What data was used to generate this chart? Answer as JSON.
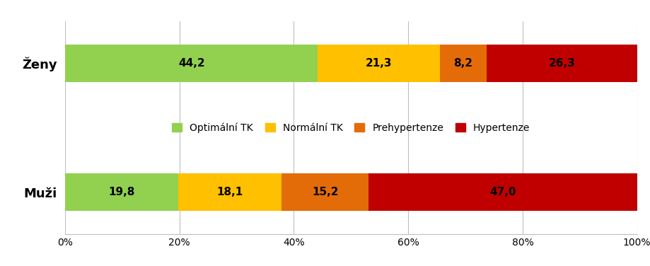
{
  "categories": [
    "Ženy",
    "Muži"
  ],
  "series": [
    {
      "label": "Optimální TK",
      "color": "#92D050",
      "values": [
        44.2,
        19.8
      ]
    },
    {
      "label": "Normální TK",
      "color": "#FFC000",
      "values": [
        21.3,
        18.1
      ]
    },
    {
      "label": "Prehypertenze",
      "color": "#E36C09",
      "values": [
        8.2,
        15.2
      ]
    },
    {
      "label": "Hypertenze",
      "color": "#C00000",
      "values": [
        26.3,
        47.0
      ]
    }
  ],
  "xlim": [
    0,
    100
  ],
  "bar_height": 0.45,
  "label_fontsize": 11,
  "tick_fontsize": 10,
  "legend_fontsize": 10,
  "background_color": "#FFFFFF",
  "grid_color": "#BFBFBF",
  "text_color": "#000000",
  "ylabel_fontsize": 13
}
